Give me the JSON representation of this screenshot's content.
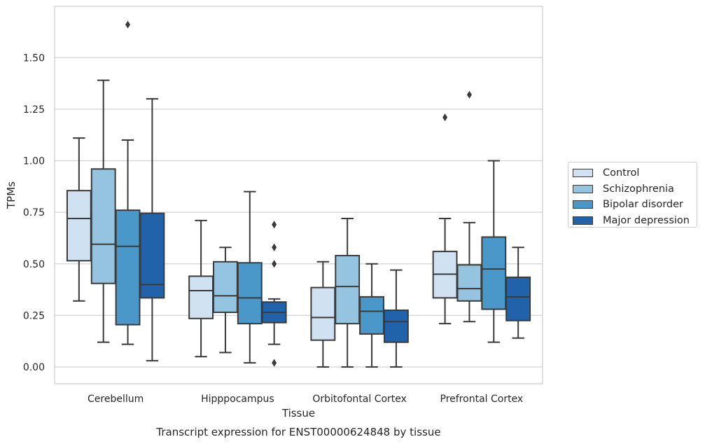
{
  "chart_data": {
    "type": "boxplot",
    "title": "Transcript expression for ENST00000624848 by tissue",
    "xlabel": "Tissue",
    "ylabel": "TPMs",
    "ylim": [
      -0.08,
      1.75
    ],
    "yticks": [
      "0.00",
      "0.25",
      "0.50",
      "0.75",
      "1.00",
      "1.25",
      "1.50"
    ],
    "grid": "y",
    "legend_position": "right",
    "categories": [
      "Cerebellum",
      "Hipppocampus",
      "Orbitofontal Cortex",
      "Prefrontal Cortex"
    ],
    "series": [
      {
        "name": "Control",
        "color": "#d0e1f2",
        "boxes": [
          {
            "whislo": 0.32,
            "q1": 0.515,
            "med": 0.72,
            "q3": 0.855,
            "whishi": 1.11,
            "fliers": []
          },
          {
            "whislo": 0.05,
            "q1": 0.235,
            "med": 0.37,
            "q3": 0.44,
            "whishi": 0.71,
            "fliers": []
          },
          {
            "whislo": 0.0,
            "q1": 0.13,
            "med": 0.24,
            "q3": 0.385,
            "whishi": 0.51,
            "fliers": []
          },
          {
            "whislo": 0.21,
            "q1": 0.335,
            "med": 0.45,
            "q3": 0.56,
            "whishi": 0.72,
            "fliers": [
              1.21
            ]
          }
        ]
      },
      {
        "name": "Schizophrenia",
        "color": "#94c4df",
        "boxes": [
          {
            "whislo": 0.12,
            "q1": 0.405,
            "med": 0.595,
            "q3": 0.96,
            "whishi": 1.39,
            "fliers": []
          },
          {
            "whislo": 0.07,
            "q1": 0.265,
            "med": 0.345,
            "q3": 0.51,
            "whishi": 0.58,
            "fliers": []
          },
          {
            "whislo": 0.0,
            "q1": 0.21,
            "med": 0.39,
            "q3": 0.54,
            "whishi": 0.72,
            "fliers": []
          },
          {
            "whislo": 0.22,
            "q1": 0.32,
            "med": 0.38,
            "q3": 0.495,
            "whishi": 0.7,
            "fliers": [
              1.32
            ]
          }
        ]
      },
      {
        "name": "Bipolar disorder",
        "color": "#4a98c9",
        "boxes": [
          {
            "whislo": 0.11,
            "q1": 0.205,
            "med": 0.585,
            "q3": 0.76,
            "whishi": 1.1,
            "fliers": [
              1.66
            ]
          },
          {
            "whislo": 0.02,
            "q1": 0.21,
            "med": 0.335,
            "q3": 0.505,
            "whishi": 0.85,
            "fliers": []
          },
          {
            "whislo": 0.0,
            "q1": 0.16,
            "med": 0.27,
            "q3": 0.34,
            "whishi": 0.5,
            "fliers": []
          },
          {
            "whislo": 0.12,
            "q1": 0.28,
            "med": 0.475,
            "q3": 0.63,
            "whishi": 1.0,
            "fliers": []
          }
        ]
      },
      {
        "name": "Major depression",
        "color": "#2163aa",
        "boxes": [
          {
            "whislo": 0.03,
            "q1": 0.335,
            "med": 0.4,
            "q3": 0.745,
            "whishi": 1.3,
            "fliers": []
          },
          {
            "whislo": 0.11,
            "q1": 0.215,
            "med": 0.265,
            "q3": 0.315,
            "whishi": 0.33,
            "fliers": [
              0.69,
              0.58,
              0.5,
              0.02
            ]
          },
          {
            "whislo": 0.0,
            "q1": 0.12,
            "med": 0.22,
            "q3": 0.275,
            "whishi": 0.47,
            "fliers": []
          },
          {
            "whislo": 0.14,
            "q1": 0.225,
            "med": 0.34,
            "q3": 0.435,
            "whishi": 0.58,
            "fliers": []
          }
        ]
      }
    ]
  }
}
